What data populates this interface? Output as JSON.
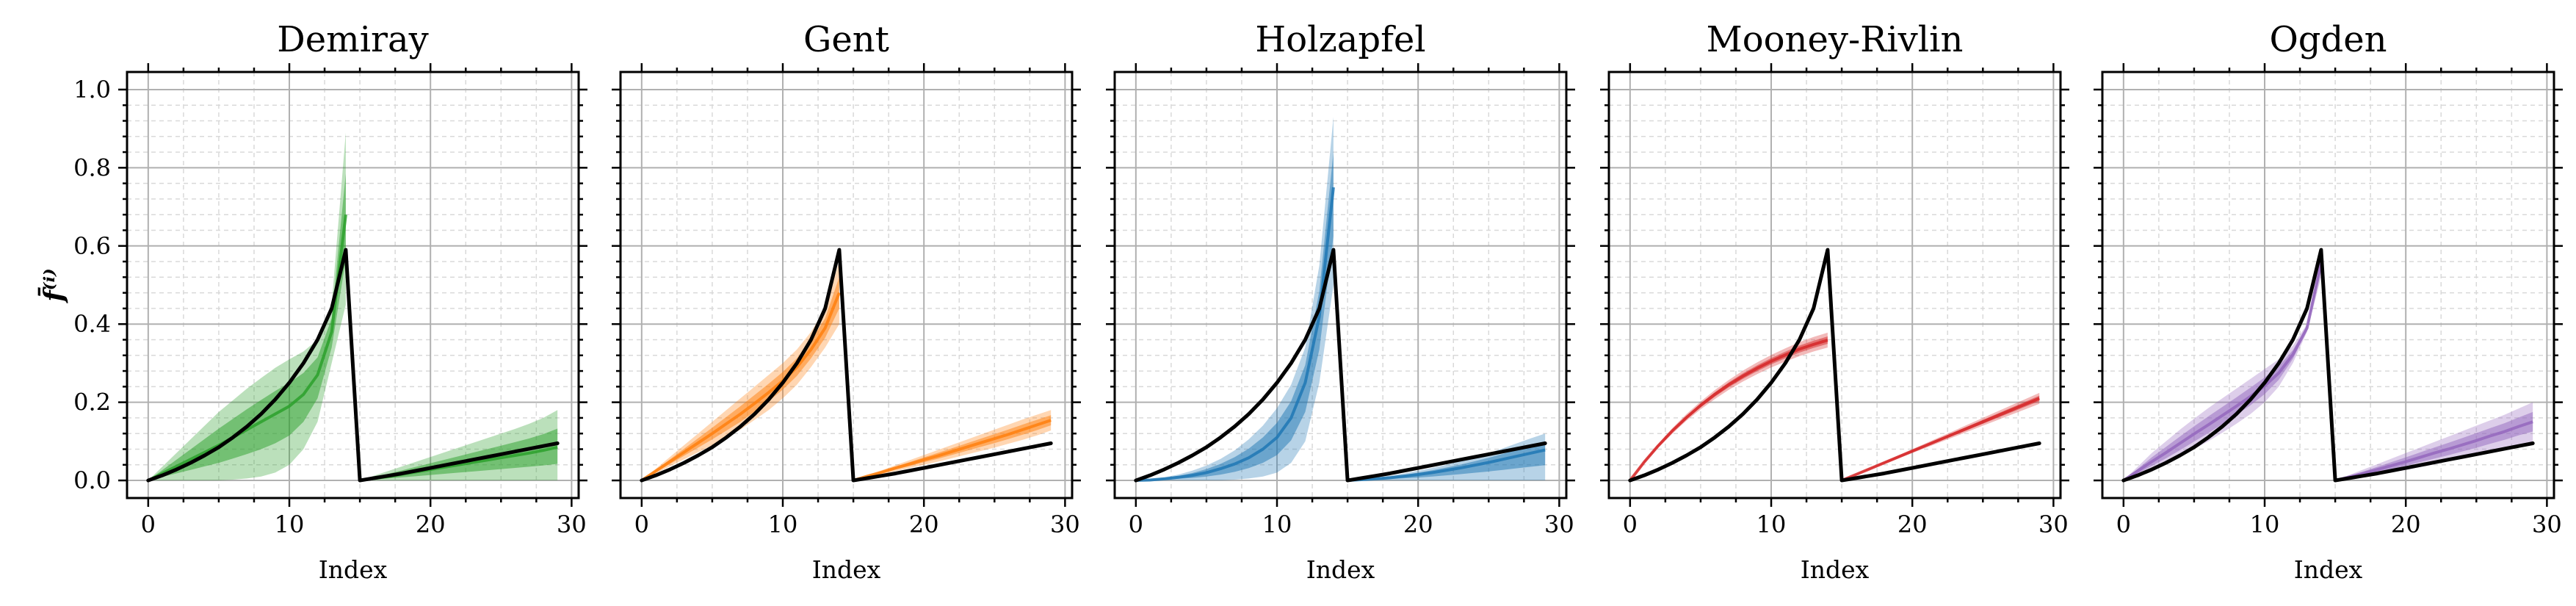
{
  "figure": {
    "ylabel": "f̄⁽ⁱ⁾",
    "xlabel": "Index",
    "reference_color": "#000000",
    "grid": true,
    "minor_grid": true
  },
  "chart_data": [
    {
      "type": "line",
      "title": "Demiray",
      "xlabel": "Index",
      "ylabel": "f̄⁽ⁱ⁾",
      "color": "#2ca02c",
      "xlim": [
        -1.5,
        30.5
      ],
      "ylim": [
        -0.045,
        1.045
      ],
      "xticks": [
        0,
        10,
        20,
        30
      ],
      "yticks": [
        0.0,
        0.2,
        0.4,
        0.6,
        0.8,
        1.0
      ],
      "x": [
        0,
        1,
        2,
        3,
        4,
        5,
        6,
        7,
        8,
        9,
        10,
        11,
        12,
        13,
        14,
        15,
        16,
        17,
        18,
        19,
        20,
        21,
        22,
        23,
        24,
        25,
        26,
        27,
        28,
        29
      ],
      "reference": [
        0.0,
        0.013,
        0.028,
        0.045,
        0.064,
        0.085,
        0.11,
        0.138,
        0.17,
        0.207,
        0.25,
        0.3,
        0.36,
        0.44,
        0.59,
        0.0,
        0.006,
        0.012,
        0.018,
        0.025,
        0.032,
        0.039,
        0.046,
        0.053,
        0.06,
        0.067,
        0.074,
        0.081,
        0.088,
        0.095
      ],
      "band_upper": [
        0.0,
        0.035,
        0.07,
        0.105,
        0.14,
        0.175,
        0.205,
        0.235,
        0.262,
        0.288,
        0.31,
        0.33,
        0.36,
        0.45,
        0.89,
        0.0,
        0.012,
        0.024,
        0.036,
        0.048,
        0.06,
        0.072,
        0.084,
        0.096,
        0.108,
        0.12,
        0.132,
        0.145,
        0.16,
        0.18
      ],
      "band_lower": [
        0.0,
        0.0,
        0.0,
        0.0,
        0.0,
        0.0,
        0.002,
        0.005,
        0.01,
        0.02,
        0.04,
        0.08,
        0.15,
        0.3,
        0.45,
        0.0,
        0.0,
        0.0,
        0.0,
        0.0,
        0.0,
        0.0,
        0.0,
        0.0,
        0.0,
        0.0,
        0.0,
        0.0,
        0.0,
        0.0
      ],
      "band_mid": [
        0.0,
        0.018,
        0.036,
        0.054,
        0.072,
        0.09,
        0.11,
        0.13,
        0.15,
        0.17,
        0.19,
        0.22,
        0.27,
        0.38,
        0.68,
        0.0,
        0.005,
        0.01,
        0.016,
        0.022,
        0.028,
        0.034,
        0.04,
        0.046,
        0.052,
        0.058,
        0.064,
        0.07,
        0.077,
        0.085
      ]
    },
    {
      "type": "line",
      "title": "Gent",
      "xlabel": "Index",
      "ylabel": "f̄⁽ⁱ⁾",
      "color": "#ff7f0e",
      "xlim": [
        -1.5,
        30.5
      ],
      "ylim": [
        -0.045,
        1.045
      ],
      "xticks": [
        0,
        10,
        20,
        30
      ],
      "yticks": [
        0.0,
        0.2,
        0.4,
        0.6,
        0.8,
        1.0
      ],
      "x": [
        0,
        1,
        2,
        3,
        4,
        5,
        6,
        7,
        8,
        9,
        10,
        11,
        12,
        13,
        14,
        15,
        16,
        17,
        18,
        19,
        20,
        21,
        22,
        23,
        24,
        25,
        26,
        27,
        28,
        29
      ],
      "reference": [
        0.0,
        0.013,
        0.028,
        0.045,
        0.064,
        0.085,
        0.11,
        0.138,
        0.17,
        0.207,
        0.25,
        0.3,
        0.36,
        0.44,
        0.59,
        0.0,
        0.006,
        0.012,
        0.018,
        0.025,
        0.032,
        0.039,
        0.046,
        0.053,
        0.06,
        0.067,
        0.074,
        0.081,
        0.088,
        0.095
      ],
      "band_upper": [
        0.0,
        0.03,
        0.06,
        0.09,
        0.12,
        0.15,
        0.18,
        0.21,
        0.24,
        0.27,
        0.3,
        0.335,
        0.38,
        0.44,
        0.56,
        0.0,
        0.013,
        0.026,
        0.039,
        0.052,
        0.065,
        0.078,
        0.091,
        0.104,
        0.117,
        0.13,
        0.143,
        0.156,
        0.168,
        0.18
      ],
      "band_lower": [
        0.0,
        0.018,
        0.036,
        0.054,
        0.072,
        0.09,
        0.11,
        0.13,
        0.155,
        0.18,
        0.21,
        0.245,
        0.29,
        0.34,
        0.4,
        0.0,
        0.008,
        0.016,
        0.024,
        0.032,
        0.04,
        0.048,
        0.057,
        0.066,
        0.075,
        0.084,
        0.094,
        0.104,
        0.115,
        0.128
      ],
      "band_mid": [
        0.0,
        0.024,
        0.048,
        0.072,
        0.096,
        0.12,
        0.145,
        0.17,
        0.197,
        0.225,
        0.255,
        0.29,
        0.335,
        0.39,
        0.48,
        0.0,
        0.011,
        0.021,
        0.032,
        0.042,
        0.053,
        0.063,
        0.074,
        0.085,
        0.096,
        0.107,
        0.118,
        0.13,
        0.142,
        0.154
      ]
    },
    {
      "type": "line",
      "title": "Holzapfel",
      "xlabel": "Index",
      "ylabel": "f̄⁽ⁱ⁾",
      "color": "#1f77b4",
      "xlim": [
        -1.5,
        30.5
      ],
      "ylim": [
        -0.045,
        1.045
      ],
      "xticks": [
        0,
        10,
        20,
        30
      ],
      "yticks": [
        0.0,
        0.2,
        0.4,
        0.6,
        0.8,
        1.0
      ],
      "x": [
        0,
        1,
        2,
        3,
        4,
        5,
        6,
        7,
        8,
        9,
        10,
        11,
        12,
        13,
        14,
        15,
        16,
        17,
        18,
        19,
        20,
        21,
        22,
        23,
        24,
        25,
        26,
        27,
        28,
        29
      ],
      "reference": [
        0.0,
        0.013,
        0.028,
        0.045,
        0.064,
        0.085,
        0.11,
        0.138,
        0.17,
        0.207,
        0.25,
        0.3,
        0.36,
        0.44,
        0.59,
        0.0,
        0.006,
        0.012,
        0.018,
        0.025,
        0.032,
        0.039,
        0.046,
        0.053,
        0.06,
        0.067,
        0.074,
        0.081,
        0.088,
        0.095
      ],
      "band_upper": [
        0.0,
        0.003,
        0.008,
        0.015,
        0.025,
        0.038,
        0.055,
        0.077,
        0.105,
        0.14,
        0.185,
        0.245,
        0.34,
        0.55,
        0.93,
        0.0,
        0.003,
        0.007,
        0.012,
        0.018,
        0.025,
        0.032,
        0.04,
        0.049,
        0.059,
        0.07,
        0.082,
        0.095,
        0.108,
        0.12
      ],
      "band_lower": [
        0.0,
        0.0,
        0.0,
        0.0,
        0.0,
        0.0,
        0.0,
        0.002,
        0.005,
        0.01,
        0.02,
        0.045,
        0.1,
        0.25,
        0.5,
        0.0,
        0.0,
        0.0,
        0.0,
        0.0,
        0.0,
        0.0,
        0.0,
        0.0,
        0.0,
        0.0,
        0.0,
        0.0,
        0.0,
        0.0
      ],
      "band_mid": [
        0.0,
        0.001,
        0.004,
        0.008,
        0.013,
        0.02,
        0.03,
        0.042,
        0.058,
        0.08,
        0.11,
        0.16,
        0.25,
        0.42,
        0.75,
        0.0,
        0.002,
        0.004,
        0.007,
        0.011,
        0.015,
        0.02,
        0.026,
        0.032,
        0.039,
        0.046,
        0.054,
        0.062,
        0.07,
        0.078
      ]
    },
    {
      "type": "line",
      "title": "Mooney-Rivlin",
      "xlabel": "Index",
      "ylabel": "f̄⁽ⁱ⁾",
      "color": "#d62728",
      "xlim": [
        -1.5,
        30.5
      ],
      "ylim": [
        -0.045,
        1.045
      ],
      "xticks": [
        0,
        10,
        20,
        30
      ],
      "yticks": [
        0.0,
        0.2,
        0.4,
        0.6,
        0.8,
        1.0
      ],
      "x": [
        0,
        1,
        2,
        3,
        4,
        5,
        6,
        7,
        8,
        9,
        10,
        11,
        12,
        13,
        14,
        15,
        16,
        17,
        18,
        19,
        20,
        21,
        22,
        23,
        24,
        25,
        26,
        27,
        28,
        29
      ],
      "reference": [
        0.0,
        0.013,
        0.028,
        0.045,
        0.064,
        0.085,
        0.11,
        0.138,
        0.17,
        0.207,
        0.25,
        0.3,
        0.36,
        0.44,
        0.59,
        0.0,
        0.006,
        0.012,
        0.018,
        0.025,
        0.032,
        0.039,
        0.046,
        0.053,
        0.06,
        0.067,
        0.074,
        0.081,
        0.088,
        0.095
      ],
      "band_upper": [
        0.0,
        0.05,
        0.094,
        0.134,
        0.17,
        0.202,
        0.231,
        0.257,
        0.281,
        0.302,
        0.321,
        0.338,
        0.354,
        0.367,
        0.378,
        0.0,
        0.016,
        0.032,
        0.048,
        0.064,
        0.08,
        0.096,
        0.112,
        0.128,
        0.144,
        0.16,
        0.176,
        0.192,
        0.208,
        0.224
      ],
      "band_lower": [
        0.0,
        0.044,
        0.084,
        0.12,
        0.153,
        0.182,
        0.208,
        0.232,
        0.253,
        0.272,
        0.289,
        0.304,
        0.318,
        0.33,
        0.34,
        0.0,
        0.014,
        0.028,
        0.042,
        0.056,
        0.07,
        0.084,
        0.098,
        0.112,
        0.126,
        0.14,
        0.154,
        0.168,
        0.182,
        0.196
      ],
      "band_mid": [
        0.0,
        0.047,
        0.089,
        0.127,
        0.161,
        0.192,
        0.22,
        0.245,
        0.267,
        0.287,
        0.305,
        0.321,
        0.336,
        0.348,
        0.359,
        0.0,
        0.015,
        0.03,
        0.045,
        0.06,
        0.075,
        0.09,
        0.105,
        0.12,
        0.135,
        0.15,
        0.165,
        0.18,
        0.195,
        0.21
      ]
    },
    {
      "type": "line",
      "title": "Ogden",
      "xlabel": "Index",
      "ylabel": "f̄⁽ⁱ⁾",
      "color": "#9467bd",
      "xlim": [
        -1.5,
        30.5
      ],
      "ylim": [
        -0.045,
        1.045
      ],
      "xticks": [
        0,
        10,
        20,
        30
      ],
      "yticks": [
        0.0,
        0.2,
        0.4,
        0.6,
        0.8,
        1.0
      ],
      "x": [
        0,
        1,
        2,
        3,
        4,
        5,
        6,
        7,
        8,
        9,
        10,
        11,
        12,
        13,
        14,
        15,
        16,
        17,
        18,
        19,
        20,
        21,
        22,
        23,
        24,
        25,
        26,
        27,
        28,
        29
      ],
      "reference": [
        0.0,
        0.013,
        0.028,
        0.045,
        0.064,
        0.085,
        0.11,
        0.138,
        0.17,
        0.207,
        0.25,
        0.3,
        0.36,
        0.44,
        0.59,
        0.0,
        0.006,
        0.012,
        0.018,
        0.025,
        0.032,
        0.039,
        0.046,
        0.053,
        0.06,
        0.067,
        0.074,
        0.081,
        0.088,
        0.095
      ],
      "band_upper": [
        0.0,
        0.035,
        0.07,
        0.1,
        0.13,
        0.158,
        0.185,
        0.21,
        0.235,
        0.26,
        0.285,
        0.31,
        0.345,
        0.4,
        0.59,
        0.0,
        0.014,
        0.028,
        0.042,
        0.056,
        0.07,
        0.084,
        0.098,
        0.112,
        0.126,
        0.14,
        0.154,
        0.168,
        0.184,
        0.2
      ],
      "band_lower": [
        0.0,
        0.012,
        0.026,
        0.042,
        0.06,
        0.08,
        0.1,
        0.122,
        0.145,
        0.17,
        0.2,
        0.24,
        0.3,
        0.38,
        0.52,
        0.0,
        0.004,
        0.009,
        0.015,
        0.021,
        0.027,
        0.034,
        0.041,
        0.049,
        0.057,
        0.065,
        0.074,
        0.083,
        0.093,
        0.1
      ],
      "band_mid": [
        0.0,
        0.024,
        0.048,
        0.071,
        0.095,
        0.119,
        0.142,
        0.166,
        0.19,
        0.215,
        0.242,
        0.275,
        0.322,
        0.39,
        0.555,
        0.0,
        0.009,
        0.018,
        0.028,
        0.038,
        0.048,
        0.059,
        0.07,
        0.08,
        0.091,
        0.102,
        0.114,
        0.125,
        0.138,
        0.15
      ]
    }
  ]
}
